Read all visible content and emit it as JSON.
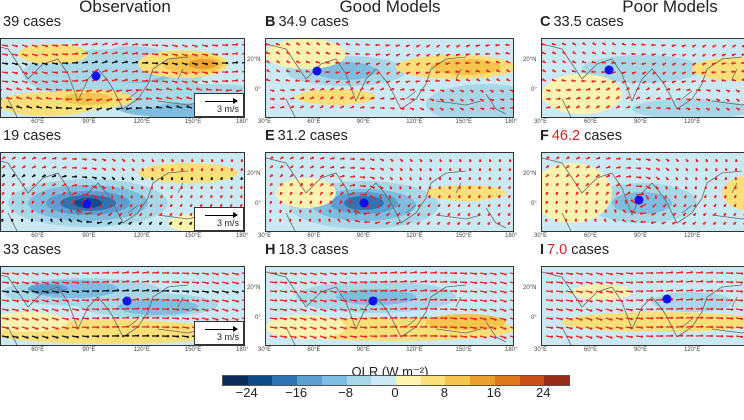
{
  "column_titles": [
    "Observation",
    "Good Models",
    "Poor Models"
  ],
  "panels": [
    {
      "letter": "",
      "cases": "39",
      "suffix": " cases",
      "highlight": false,
      "scale_label": "3 m/s"
    },
    {
      "letter": "B",
      "cases": "34.9",
      "suffix": " cases",
      "highlight": false
    },
    {
      "letter": "C",
      "cases": "33.5",
      "suffix": " cases",
      "highlight": false
    },
    {
      "letter": "",
      "cases": "19",
      "suffix": " cases",
      "highlight": false,
      "scale_label": "3 m/s"
    },
    {
      "letter": "E",
      "cases": "31.2",
      "suffix": " cases",
      "highlight": false
    },
    {
      "letter": "F",
      "cases": "46.2",
      "suffix": " cases",
      "highlight": true
    },
    {
      "letter": "",
      "cases": "33",
      "suffix": " cases",
      "highlight": false,
      "scale_label": "3 m/s"
    },
    {
      "letter": "H",
      "cases": "18.3",
      "suffix": " cases",
      "highlight": false
    },
    {
      "letter": "I",
      "cases": "7.0",
      "suffix": " cases",
      "highlight": true
    }
  ],
  "lon_ticks": [
    "30°E",
    "60°E",
    "90°E",
    "120°E",
    "150°E",
    "180°"
  ],
  "lat_ticks": [
    "20°N",
    "0°"
  ],
  "colorbar": {
    "title": "OLR (W m⁻²)",
    "tick_labels": [
      "−24",
      "−16",
      "−8",
      "0",
      "8",
      "16",
      "24"
    ],
    "colors": [
      "#0b2a55",
      "#0f4a8a",
      "#2e74b5",
      "#5a9fd0",
      "#7fbde0",
      "#a8d7e8",
      "#cbe9f3",
      "#fdf3b0",
      "#fbe07a",
      "#f5c54d",
      "#eba02e",
      "#e07a1e",
      "#c9501a",
      "#962b17"
    ]
  },
  "highlight_color": "#e02020",
  "wind_vector_colors": {
    "significant": "#f02020",
    "other": "#111111"
  },
  "center_marker_color": "#1010f0"
}
